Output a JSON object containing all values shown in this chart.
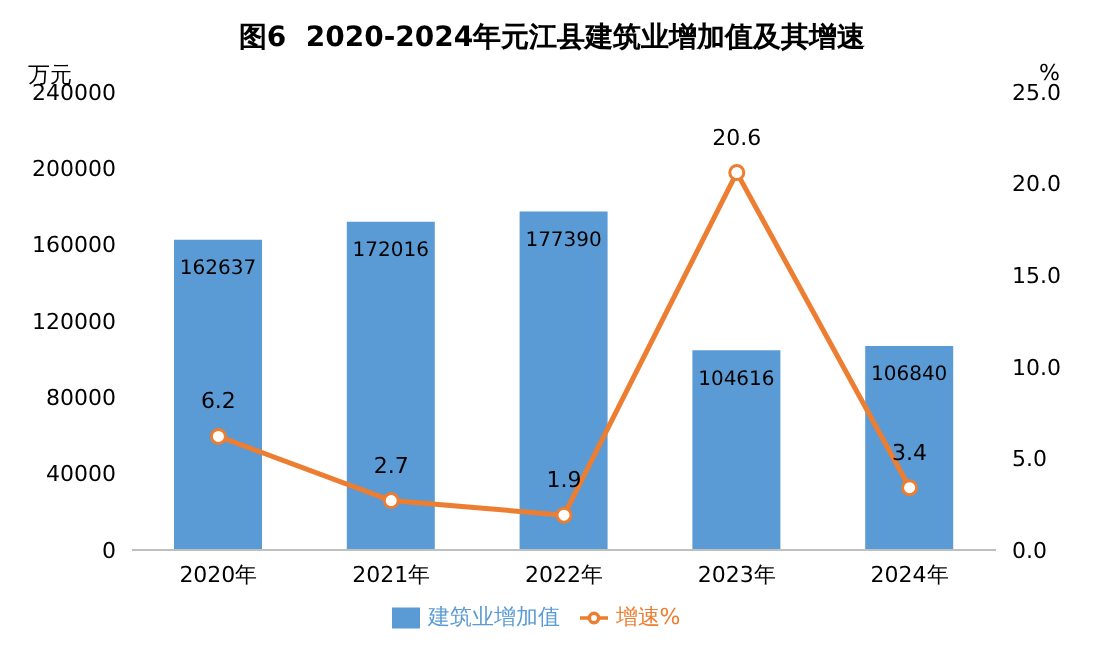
{
  "chart_data": {
    "type": "bar",
    "title": "图6  2020-2024年元江县建筑业增加值及其增速",
    "categories": [
      "2020年",
      "2021年",
      "2022年",
      "2023年",
      "2024年"
    ],
    "series": [
      {
        "name": "建筑业增加值",
        "color": "#5b9bd5",
        "values": [
          162637,
          172016,
          177390,
          104616,
          106840
        ]
      },
      {
        "name": "增速%",
        "type": "line",
        "axis": "y2",
        "color": "#ed7d31",
        "marker": "circle",
        "values": [
          6.2,
          2.7,
          1.9,
          20.6,
          3.4
        ]
      }
    ],
    "ylabel": "万元",
    "y2label": "%",
    "ylim": [
      0,
      240000
    ],
    "yticks": [
      0,
      40000,
      80000,
      120000,
      160000,
      200000,
      240000
    ],
    "y2lim": [
      0,
      25
    ],
    "y2ticks": [
      {
        "value": 0,
        "label": "0.0"
      },
      {
        "value": 5,
        "label": "5.0"
      },
      {
        "value": 10,
        "label": "10.0"
      },
      {
        "value": 15,
        "label": "15.0"
      },
      {
        "value": 20,
        "label": "20.0"
      },
      {
        "value": 25,
        "label": "25.0"
      }
    ],
    "data_labels": true,
    "legend": "bottom",
    "grid": false
  }
}
